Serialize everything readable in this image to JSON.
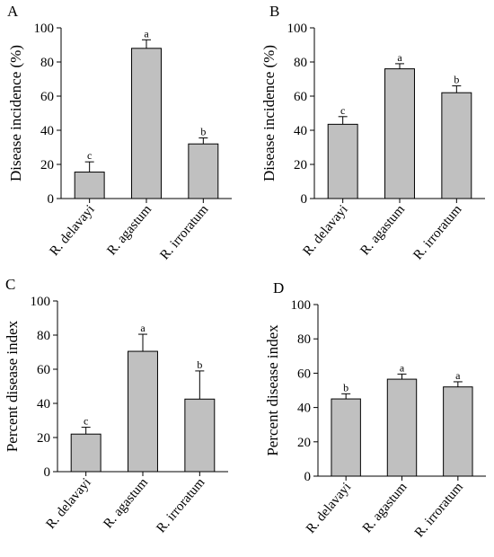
{
  "chart_data": [
    {
      "type": "bar",
      "panel": "A",
      "ylabel": "Disease incidence (%)",
      "ylim": [
        0,
        100
      ],
      "yticks": [
        0,
        20,
        40,
        60,
        80,
        100
      ],
      "categories": [
        "R. delavayi",
        "R. agastum",
        "R. irroratum"
      ],
      "values": [
        15.5,
        88,
        32
      ],
      "errors": [
        6,
        5,
        3.5
      ],
      "letters": [
        "c",
        "a",
        "b"
      ]
    },
    {
      "type": "bar",
      "panel": "B",
      "ylabel": "Disease incidence (%)",
      "ylim": [
        0,
        100
      ],
      "yticks": [
        0,
        20,
        40,
        60,
        80,
        100
      ],
      "categories": [
        "R. delavayi",
        "R. agastum",
        "R. irroratum"
      ],
      "values": [
        43.5,
        76,
        62
      ],
      "errors": [
        4.5,
        3,
        4
      ],
      "letters": [
        "c",
        "a",
        "b"
      ]
    },
    {
      "type": "bar",
      "panel": "C",
      "ylabel": "Percent disease index",
      "ylim": [
        0,
        100
      ],
      "yticks": [
        0,
        20,
        40,
        60,
        80,
        100
      ],
      "categories": [
        "R. delavayi",
        "R. agastum",
        "R. irroratum"
      ],
      "values": [
        22,
        70.5,
        42.5
      ],
      "errors": [
        4,
        10,
        16.5
      ],
      "letters": [
        "c",
        "a",
        "b"
      ]
    },
    {
      "type": "bar",
      "panel": "D",
      "ylabel": "Percent disease index",
      "ylim": [
        0,
        100
      ],
      "yticks": [
        0,
        20,
        40,
        60,
        80,
        100
      ],
      "categories": [
        "R. delavayi",
        "R. agastum",
        "R. irroratum"
      ],
      "values": [
        45,
        56.5,
        52
      ],
      "errors": [
        3,
        3,
        3
      ],
      "letters": [
        "b",
        "a",
        "a"
      ]
    }
  ]
}
